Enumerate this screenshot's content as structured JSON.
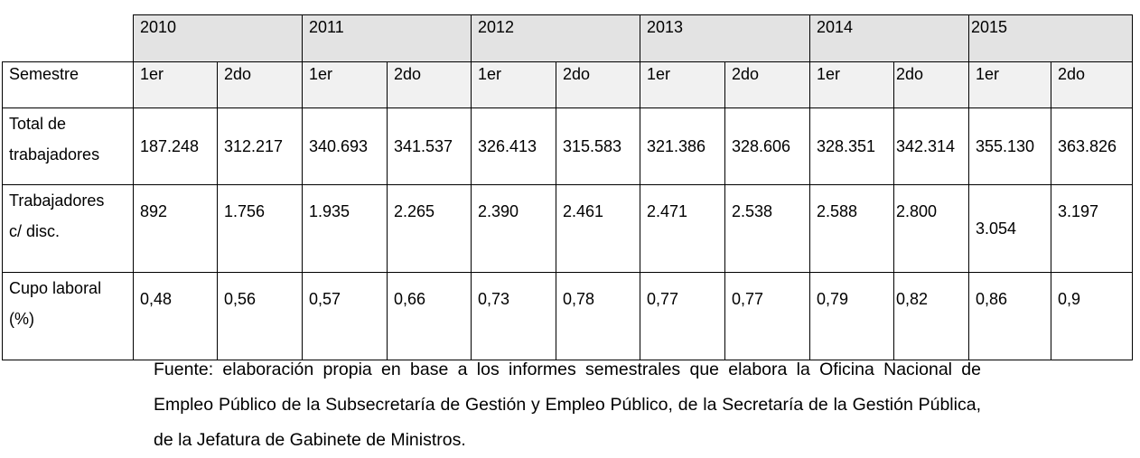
{
  "table": {
    "years": [
      "2010",
      "2011",
      "2012",
      "2013",
      "2014",
      "2015"
    ],
    "semester_header": "Semestre",
    "semesters": [
      "1er",
      "2do",
      "1er",
      "2do",
      "1er",
      "2do",
      "1er",
      "2do",
      "1er",
      "2do",
      "1er",
      "2do"
    ],
    "rows": [
      {
        "label_line1": "Total de",
        "label_line2": "trabajadores",
        "values": [
          "187.248",
          "312.217",
          "340.693",
          "341.537",
          "326.413",
          "315.583",
          "321.386",
          "328.606",
          "328.351",
          "342.314",
          "355.130",
          "363.826"
        ]
      },
      {
        "label_line1": "Trabajadores",
        "label_line2": "c/ disc.",
        "values": [
          "892",
          "1.756",
          "1.935",
          "2.265",
          "2.390",
          "2.461",
          "2.471",
          "2.538",
          "2.588",
          "2.800",
          "3.054",
          "3.197"
        ]
      },
      {
        "label_line1": "Cupo laboral",
        "label_line2": "(%)",
        "values": [
          "0,48",
          "0,56",
          "0,57",
          "0,66",
          "0,73",
          "0,78",
          "0,77",
          "0,77",
          "0,79",
          "0,82",
          "0,86",
          "0,9"
        ]
      }
    ]
  },
  "source_note": "Fuente: elaboración propia en base a los informes semestrales que elabora la Oficina Nacional de Empleo Público de la Subsecretaría de Gestión y Empleo Público, de la Secretaría de la Gestión Pública, de la Jefatura de Gabinete de Ministros."
}
